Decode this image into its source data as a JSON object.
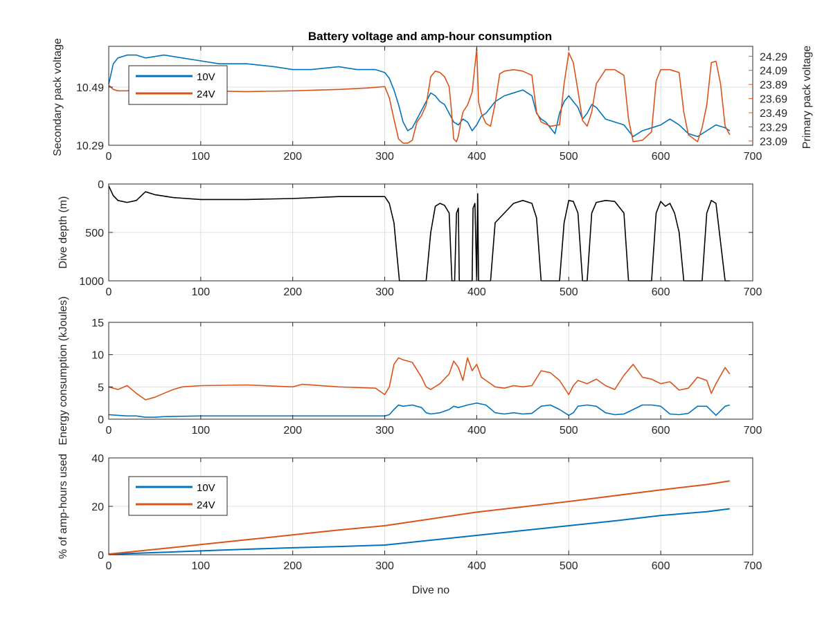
{
  "figure": {
    "title": "Battery voltage and amp-hour consumption",
    "colors": {
      "blue": "#0072BD",
      "orange": "#D95319",
      "black": "#000000",
      "grid": "#DFDFDF",
      "axis": "#262626"
    }
  },
  "chart_data": [
    {
      "id": "voltage",
      "type": "line",
      "title": "Battery voltage and amp-hour consumption",
      "xlabel": "",
      "xlim": [
        0,
        700
      ],
      "xticks": [
        "0",
        "100",
        "200",
        "300",
        "400",
        "500",
        "600",
        "700"
      ],
      "grid": true,
      "legend": {
        "placement": "top-left",
        "entries": [
          "10V",
          "24V"
        ]
      },
      "left_axis": {
        "label": "Secondary pack voltage",
        "ylim": [
          10.29,
          10.63
        ],
        "ticks": [
          10.29,
          10.49
        ],
        "tick_labels": [
          "10.29",
          "10.49"
        ],
        "color": "blue"
      },
      "right_axis": {
        "label": "Primary pack voltage",
        "ylim": [
          23.03,
          24.43
        ],
        "ticks": [
          23.09,
          23.29,
          23.49,
          23.69,
          23.89,
          24.09,
          24.29
        ],
        "tick_labels": [
          "23.09",
          "23.29",
          "23.49",
          "23.69",
          "23.89",
          "24.09",
          "24.29"
        ],
        "color": "orange"
      },
      "series": [
        {
          "name": "10V",
          "axis": "left",
          "color": "blue",
          "x": [
            0,
            5,
            10,
            20,
            30,
            40,
            60,
            80,
            100,
            120,
            150,
            180,
            200,
            220,
            250,
            270,
            290,
            300,
            305,
            310,
            315,
            320,
            325,
            330,
            335,
            340,
            345,
            350,
            355,
            360,
            365,
            370,
            375,
            380,
            385,
            390,
            395,
            400,
            405,
            410,
            420,
            430,
            440,
            450,
            460,
            465,
            470,
            475,
            480,
            485,
            490,
            495,
            500,
            505,
            510,
            515,
            520,
            525,
            530,
            535,
            540,
            550,
            560,
            565,
            570,
            580,
            590,
            600,
            610,
            620,
            630,
            640,
            650,
            660,
            670,
            675
          ],
          "y": [
            10.5,
            10.57,
            10.59,
            10.6,
            10.6,
            10.59,
            10.6,
            10.59,
            10.58,
            10.57,
            10.57,
            10.56,
            10.55,
            10.55,
            10.56,
            10.55,
            10.55,
            10.54,
            10.52,
            10.48,
            10.43,
            10.37,
            10.34,
            10.35,
            10.38,
            10.41,
            10.44,
            10.47,
            10.46,
            10.44,
            10.43,
            10.4,
            10.37,
            10.36,
            10.38,
            10.37,
            10.34,
            10.36,
            10.39,
            10.4,
            10.44,
            10.46,
            10.47,
            10.48,
            10.46,
            10.4,
            10.38,
            10.37,
            10.35,
            10.33,
            10.4,
            10.44,
            10.46,
            10.44,
            10.42,
            10.38,
            10.4,
            10.43,
            10.42,
            10.4,
            10.38,
            10.37,
            10.36,
            10.34,
            10.32,
            10.34,
            10.35,
            10.36,
            10.38,
            10.36,
            10.33,
            10.32,
            10.34,
            10.36,
            10.35,
            10.34
          ]
        },
        {
          "name": "24V",
          "axis": "right",
          "color": "orange",
          "x": [
            0,
            5,
            10,
            20,
            30,
            40,
            60,
            80,
            100,
            150,
            200,
            250,
            280,
            300,
            305,
            310,
            315,
            320,
            325,
            330,
            335,
            340,
            345,
            350,
            355,
            360,
            365,
            370,
            372,
            375,
            378,
            380,
            383,
            385,
            390,
            395,
            400,
            402,
            405,
            410,
            415,
            420,
            425,
            430,
            440,
            450,
            460,
            465,
            470,
            480,
            490,
            495,
            500,
            505,
            510,
            515,
            520,
            525,
            530,
            540,
            550,
            560,
            565,
            570,
            580,
            590,
            595,
            600,
            610,
            620,
            625,
            630,
            640,
            645,
            650,
            655,
            660,
            665,
            670,
            675
          ],
          "y": [
            23.88,
            23.82,
            23.8,
            23.8,
            23.82,
            23.81,
            23.8,
            23.8,
            23.8,
            23.79,
            23.8,
            23.82,
            23.84,
            23.86,
            23.7,
            23.4,
            23.12,
            23.06,
            23.06,
            23.1,
            23.36,
            23.45,
            23.6,
            24.0,
            24.08,
            24.06,
            24.0,
            23.86,
            23.6,
            23.12,
            23.08,
            23.16,
            23.38,
            23.5,
            23.6,
            23.78,
            24.4,
            23.64,
            23.48,
            23.34,
            23.3,
            23.62,
            24.04,
            24.08,
            24.1,
            24.08,
            24.02,
            23.5,
            23.36,
            23.3,
            23.32,
            23.9,
            24.34,
            24.2,
            23.8,
            23.38,
            23.3,
            23.5,
            23.9,
            24.1,
            24.1,
            24.02,
            23.4,
            23.08,
            23.1,
            23.22,
            23.94,
            24.1,
            24.1,
            24.06,
            23.5,
            23.18,
            23.08,
            23.28,
            23.6,
            24.2,
            24.22,
            23.9,
            23.3,
            23.18
          ]
        }
      ]
    },
    {
      "id": "depth",
      "type": "line",
      "ylabel": "Dive depth (m)",
      "xlim": [
        0,
        700
      ],
      "ylim": [
        0,
        1000
      ],
      "y_reversed": true,
      "xticks": [
        "0",
        "100",
        "200",
        "300",
        "400",
        "500",
        "600",
        "700"
      ],
      "yticks": [
        0,
        500,
        1000
      ],
      "ytick_labels": [
        "0",
        "500",
        "1000"
      ],
      "grid": true,
      "series": [
        {
          "name": "",
          "color": "black",
          "x": [
            0,
            5,
            10,
            20,
            30,
            40,
            50,
            70,
            100,
            150,
            200,
            250,
            300,
            305,
            310,
            313,
            316,
            320,
            330,
            340,
            345,
            350,
            355,
            360,
            365,
            370,
            373,
            376,
            378,
            380,
            381,
            382,
            383,
            385,
            395,
            396,
            398,
            400,
            401,
            402,
            403,
            405,
            415,
            420,
            430,
            440,
            450,
            460,
            465,
            470,
            480,
            490,
            495,
            500,
            505,
            510,
            515,
            520,
            525,
            530,
            540,
            550,
            560,
            565,
            570,
            580,
            590,
            595,
            600,
            605,
            610,
            615,
            620,
            625,
            630,
            640,
            645,
            650,
            655,
            660,
            665,
            670,
            675
          ],
          "y": [
            20,
            120,
            170,
            190,
            170,
            80,
            110,
            140,
            160,
            160,
            150,
            130,
            130,
            200,
            400,
            700,
            1000,
            1000,
            1000,
            1000,
            1000,
            500,
            230,
            200,
            220,
            300,
            1000,
            1000,
            300,
            250,
            1000,
            1000,
            1000,
            1000,
            1000,
            250,
            200,
            1000,
            100,
            1000,
            1000,
            1000,
            1000,
            400,
            300,
            200,
            170,
            200,
            350,
            1000,
            1000,
            1000,
            400,
            170,
            180,
            300,
            1000,
            1000,
            300,
            190,
            170,
            180,
            300,
            1000,
            1000,
            1000,
            1000,
            300,
            180,
            230,
            200,
            300,
            500,
            1000,
            1000,
            1000,
            1000,
            300,
            170,
            200,
            600,
            1000,
            1000
          ]
        }
      ]
    },
    {
      "id": "energy",
      "type": "line",
      "ylabel": "Energy consumption (kJoules)",
      "xlim": [
        0,
        700
      ],
      "ylim": [
        0,
        15
      ],
      "xticks": [
        "0",
        "100",
        "200",
        "300",
        "400",
        "500",
        "600",
        "700"
      ],
      "yticks": [
        0,
        5,
        10,
        15
      ],
      "ytick_labels": [
        "0",
        "5",
        "10",
        "15"
      ],
      "grid": true,
      "series": [
        {
          "name": "24V",
          "color": "orange",
          "x": [
            0,
            10,
            20,
            30,
            40,
            50,
            60,
            70,
            80,
            100,
            150,
            200,
            210,
            250,
            290,
            300,
            305,
            310,
            315,
            320,
            330,
            340,
            345,
            350,
            360,
            370,
            375,
            380,
            385,
            390,
            395,
            400,
            405,
            410,
            420,
            430,
            440,
            450,
            460,
            470,
            480,
            490,
            500,
            505,
            510,
            520,
            530,
            540,
            550,
            560,
            570,
            580,
            590,
            600,
            610,
            620,
            630,
            640,
            650,
            655,
            660,
            670,
            675
          ],
          "y": [
            5.0,
            4.6,
            5.2,
            4.0,
            3.0,
            3.4,
            4.0,
            4.6,
            5.0,
            5.2,
            5.3,
            5.0,
            5.4,
            5.0,
            4.8,
            3.8,
            5.0,
            8.5,
            9.5,
            9.2,
            8.8,
            6.5,
            5.0,
            4.6,
            5.5,
            7.0,
            9.0,
            8.0,
            6.0,
            9.5,
            7.5,
            8.5,
            6.5,
            6.0,
            5.0,
            4.8,
            5.2,
            5.0,
            5.2,
            7.5,
            7.2,
            6.0,
            3.8,
            5.2,
            6.0,
            5.5,
            6.2,
            5.2,
            4.6,
            6.8,
            8.5,
            6.5,
            6.2,
            5.5,
            5.8,
            4.5,
            4.8,
            6.5,
            6.0,
            4.0,
            5.5,
            8.0,
            7.0
          ]
        },
        {
          "name": "10V",
          "color": "blue",
          "x": [
            0,
            10,
            20,
            30,
            40,
            50,
            60,
            100,
            150,
            200,
            250,
            290,
            300,
            305,
            310,
            315,
            320,
            330,
            340,
            345,
            350,
            360,
            370,
            375,
            380,
            390,
            400,
            410,
            420,
            430,
            440,
            450,
            460,
            470,
            480,
            490,
            500,
            505,
            510,
            520,
            530,
            540,
            550,
            560,
            570,
            580,
            590,
            600,
            610,
            620,
            630,
            640,
            650,
            660,
            670,
            675
          ],
          "y": [
            0.7,
            0.6,
            0.5,
            0.5,
            0.3,
            0.3,
            0.4,
            0.5,
            0.5,
            0.5,
            0.5,
            0.5,
            0.5,
            0.7,
            1.5,
            2.2,
            2.0,
            2.2,
            1.8,
            1.0,
            0.8,
            1.0,
            1.5,
            2.0,
            1.8,
            2.2,
            2.5,
            2.2,
            1.0,
            0.8,
            1.0,
            0.8,
            0.9,
            2.0,
            2.2,
            1.5,
            0.6,
            1.0,
            2.0,
            2.2,
            2.0,
            1.0,
            0.7,
            0.8,
            1.5,
            2.2,
            2.2,
            2.0,
            0.8,
            0.7,
            0.9,
            2.0,
            2.0,
            0.6,
            2.0,
            2.2
          ]
        }
      ]
    },
    {
      "id": "amphours",
      "type": "line",
      "xlabel": "Dive no",
      "ylabel": "% of amp-hours used",
      "xlim": [
        0,
        700
      ],
      "ylim": [
        0,
        40
      ],
      "xticks": [
        "0",
        "100",
        "200",
        "300",
        "400",
        "500",
        "600",
        "700"
      ],
      "yticks": [
        0,
        20,
        40
      ],
      "ytick_labels": [
        "0",
        "20",
        "40"
      ],
      "grid": true,
      "legend": {
        "placement": "top-left",
        "entries": [
          "10V",
          "24V"
        ]
      },
      "series": [
        {
          "name": "10V",
          "color": "blue",
          "x": [
            0,
            50,
            100,
            150,
            200,
            250,
            300,
            350,
            400,
            450,
            500,
            550,
            600,
            650,
            675
          ],
          "y": [
            0.2,
            0.9,
            1.6,
            2.3,
            2.9,
            3.4,
            4.0,
            6.0,
            8.0,
            10.0,
            12.0,
            14.0,
            16.2,
            17.8,
            19.0
          ]
        },
        {
          "name": "24V",
          "color": "orange",
          "x": [
            0,
            50,
            100,
            150,
            200,
            250,
            300,
            350,
            400,
            450,
            500,
            550,
            600,
            650,
            675
          ],
          "y": [
            0.3,
            2.2,
            4.2,
            6.2,
            8.2,
            10.2,
            12.0,
            14.8,
            17.6,
            19.8,
            22.0,
            24.4,
            26.8,
            29.0,
            30.5
          ]
        }
      ]
    }
  ]
}
